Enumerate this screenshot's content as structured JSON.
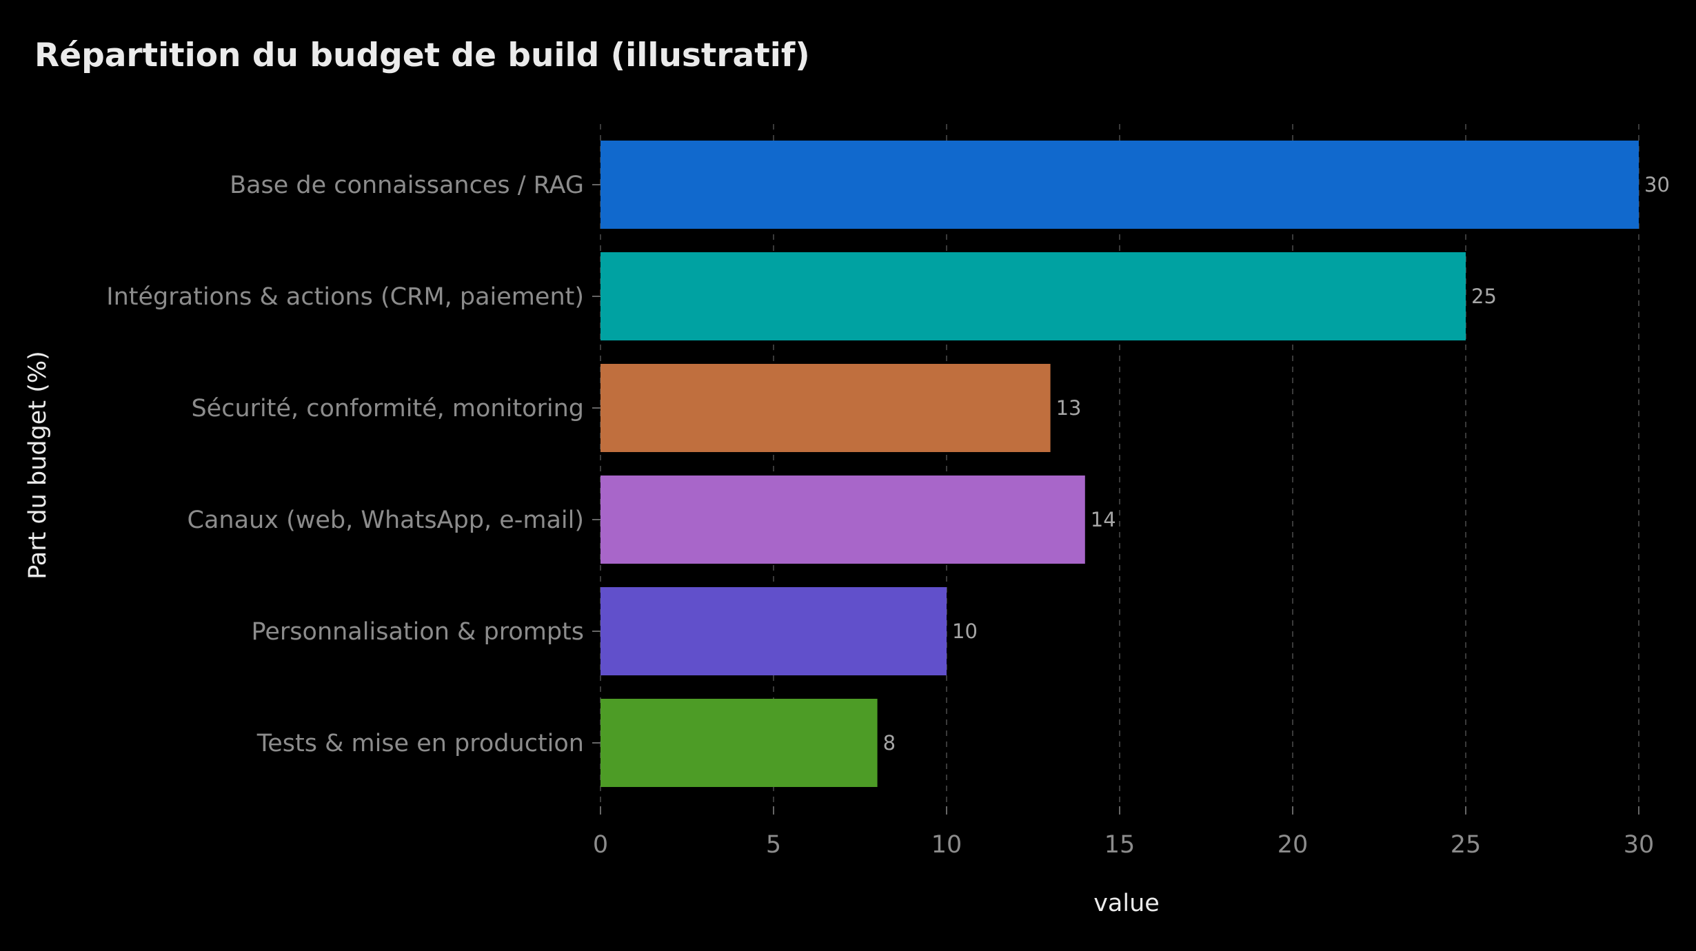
{
  "chart_data": {
    "type": "bar",
    "orientation": "horizontal",
    "title": "Répartition du budget de build (illustratif)",
    "xlabel": "value",
    "ylabel": "Part du budget (%)",
    "categories": [
      "Base de connaissances / RAG",
      "Intégrations & actions (CRM, paiement)",
      "Sécurité, conformité, monitoring",
      "Canaux (web, WhatsApp, e-mail)",
      "Personnalisation & prompts",
      "Tests & mise en production"
    ],
    "values": [
      30,
      25,
      13,
      14,
      10,
      8
    ],
    "colors": [
      "#1169cd",
      "#00a2a2",
      "#c06f3e",
      "#a866c9",
      "#6150cb",
      "#4d9c26"
    ],
    "xlim": [
      0,
      30
    ],
    "xticks": [
      "0",
      "5",
      "10",
      "15",
      "20",
      "25",
      "30"
    ],
    "grid": true,
    "data_labels": [
      "30",
      "25",
      "13",
      "14",
      "10",
      "8"
    ]
  }
}
